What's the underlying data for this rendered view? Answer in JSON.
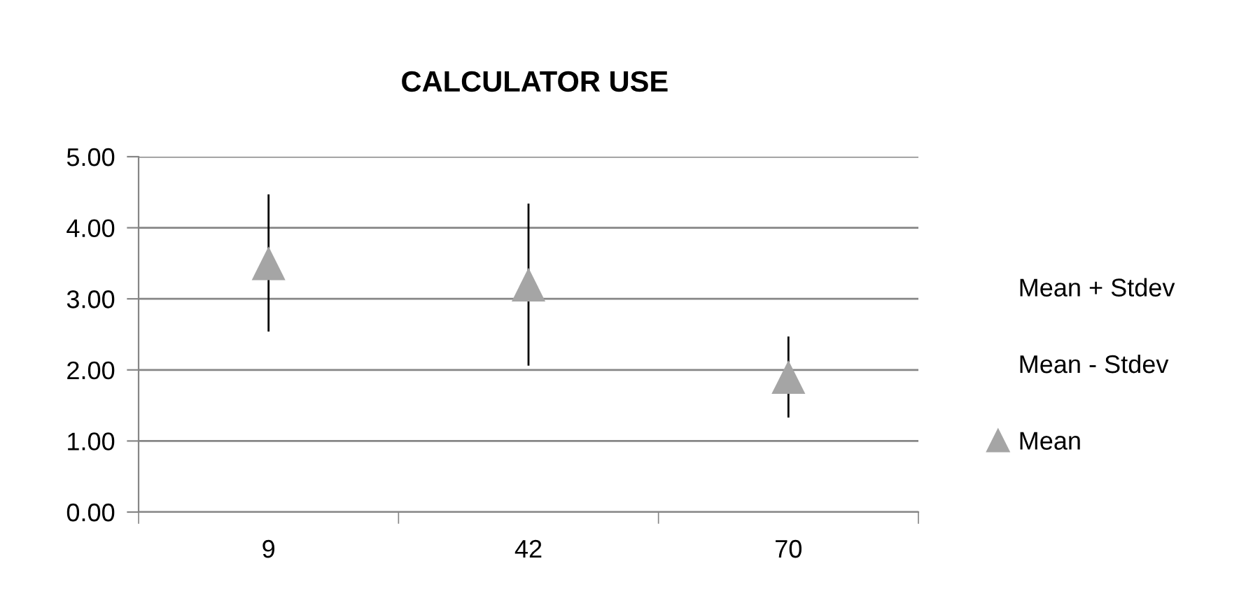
{
  "chart_data": {
    "type": "scatter",
    "title": "CALCULATOR USE",
    "categories": [
      "9",
      "42",
      "70"
    ],
    "series": [
      {
        "name": "Mean",
        "marker": "triangle",
        "color": "#a5a5a5",
        "values": [
          3.5,
          3.2,
          1.9
        ],
        "errors": [
          [
            2.54,
            4.47
          ],
          [
            2.06,
            4.34
          ],
          [
            1.33,
            2.47
          ]
        ]
      }
    ],
    "annotations": [
      "Mean + Stdev",
      "Mean - Stdev"
    ],
    "ylim": [
      0,
      5
    ],
    "yticks": [
      {
        "value": 0,
        "label": "0.00"
      },
      {
        "value": 1,
        "label": "1.00"
      },
      {
        "value": 2,
        "label": "2.00"
      },
      {
        "value": 3,
        "label": "3.00"
      },
      {
        "value": 4,
        "label": "4.00"
      },
      {
        "value": 5,
        "label": "5.00"
      }
    ],
    "grid": "y",
    "legend": "right"
  }
}
